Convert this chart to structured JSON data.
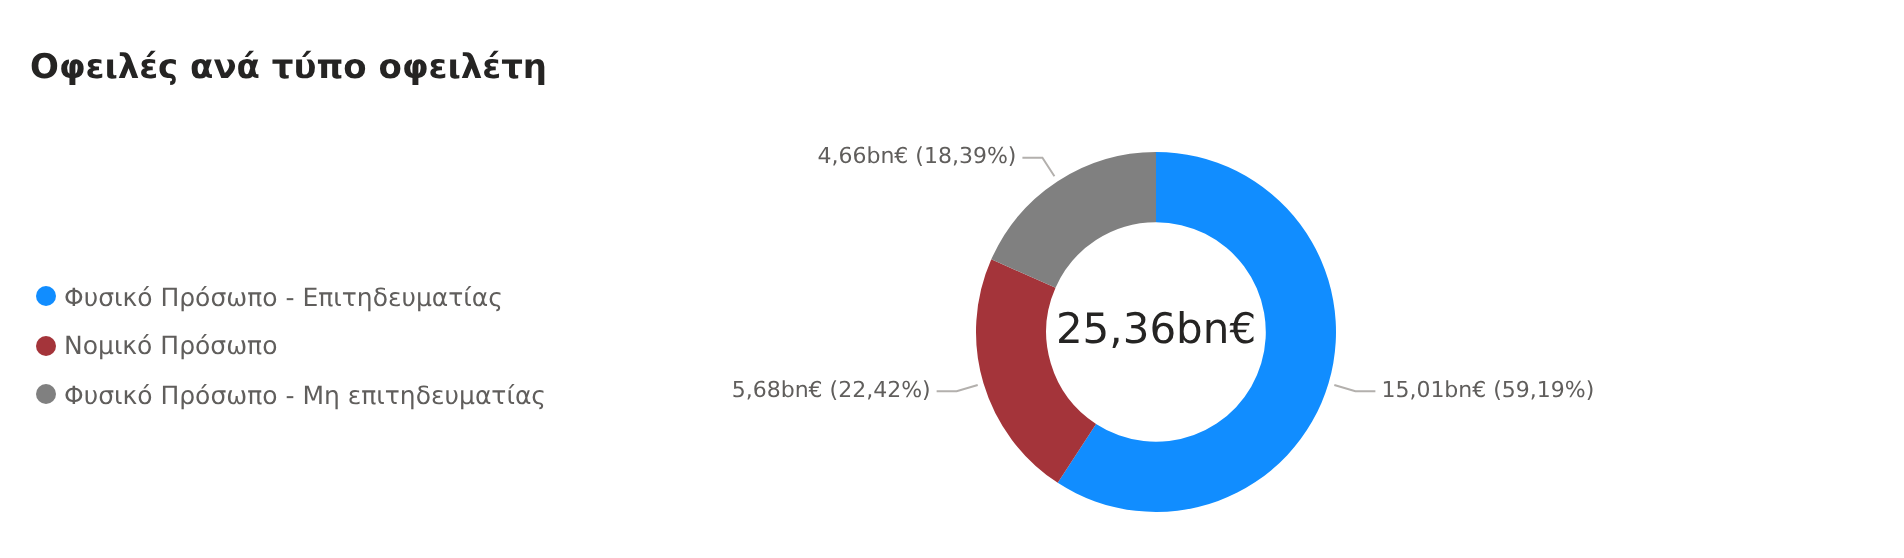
{
  "chart_data": {
    "type": "donut",
    "title": "Οφειλές ανά τύπο οφειλέτη",
    "categories": [
      "Φυσικό Πρόσωπο - Επιτηδευματίας",
      "Νομικό Πρόσωπο",
      "Φυσικό Πρόσωπο - Μη επιτηδευματίας"
    ],
    "values": [
      59.19,
      22.42,
      18.39
    ],
    "colors": [
      "#118dff",
      "#a4343a",
      "#808080"
    ],
    "value_labels": [
      "15,01bn€ (59,19%)",
      "5,68bn€ (22,42%)",
      "4,66bn€ (18,39%)"
    ],
    "annotations": [
      "25,36bn€"
    ],
    "legend": "left"
  }
}
